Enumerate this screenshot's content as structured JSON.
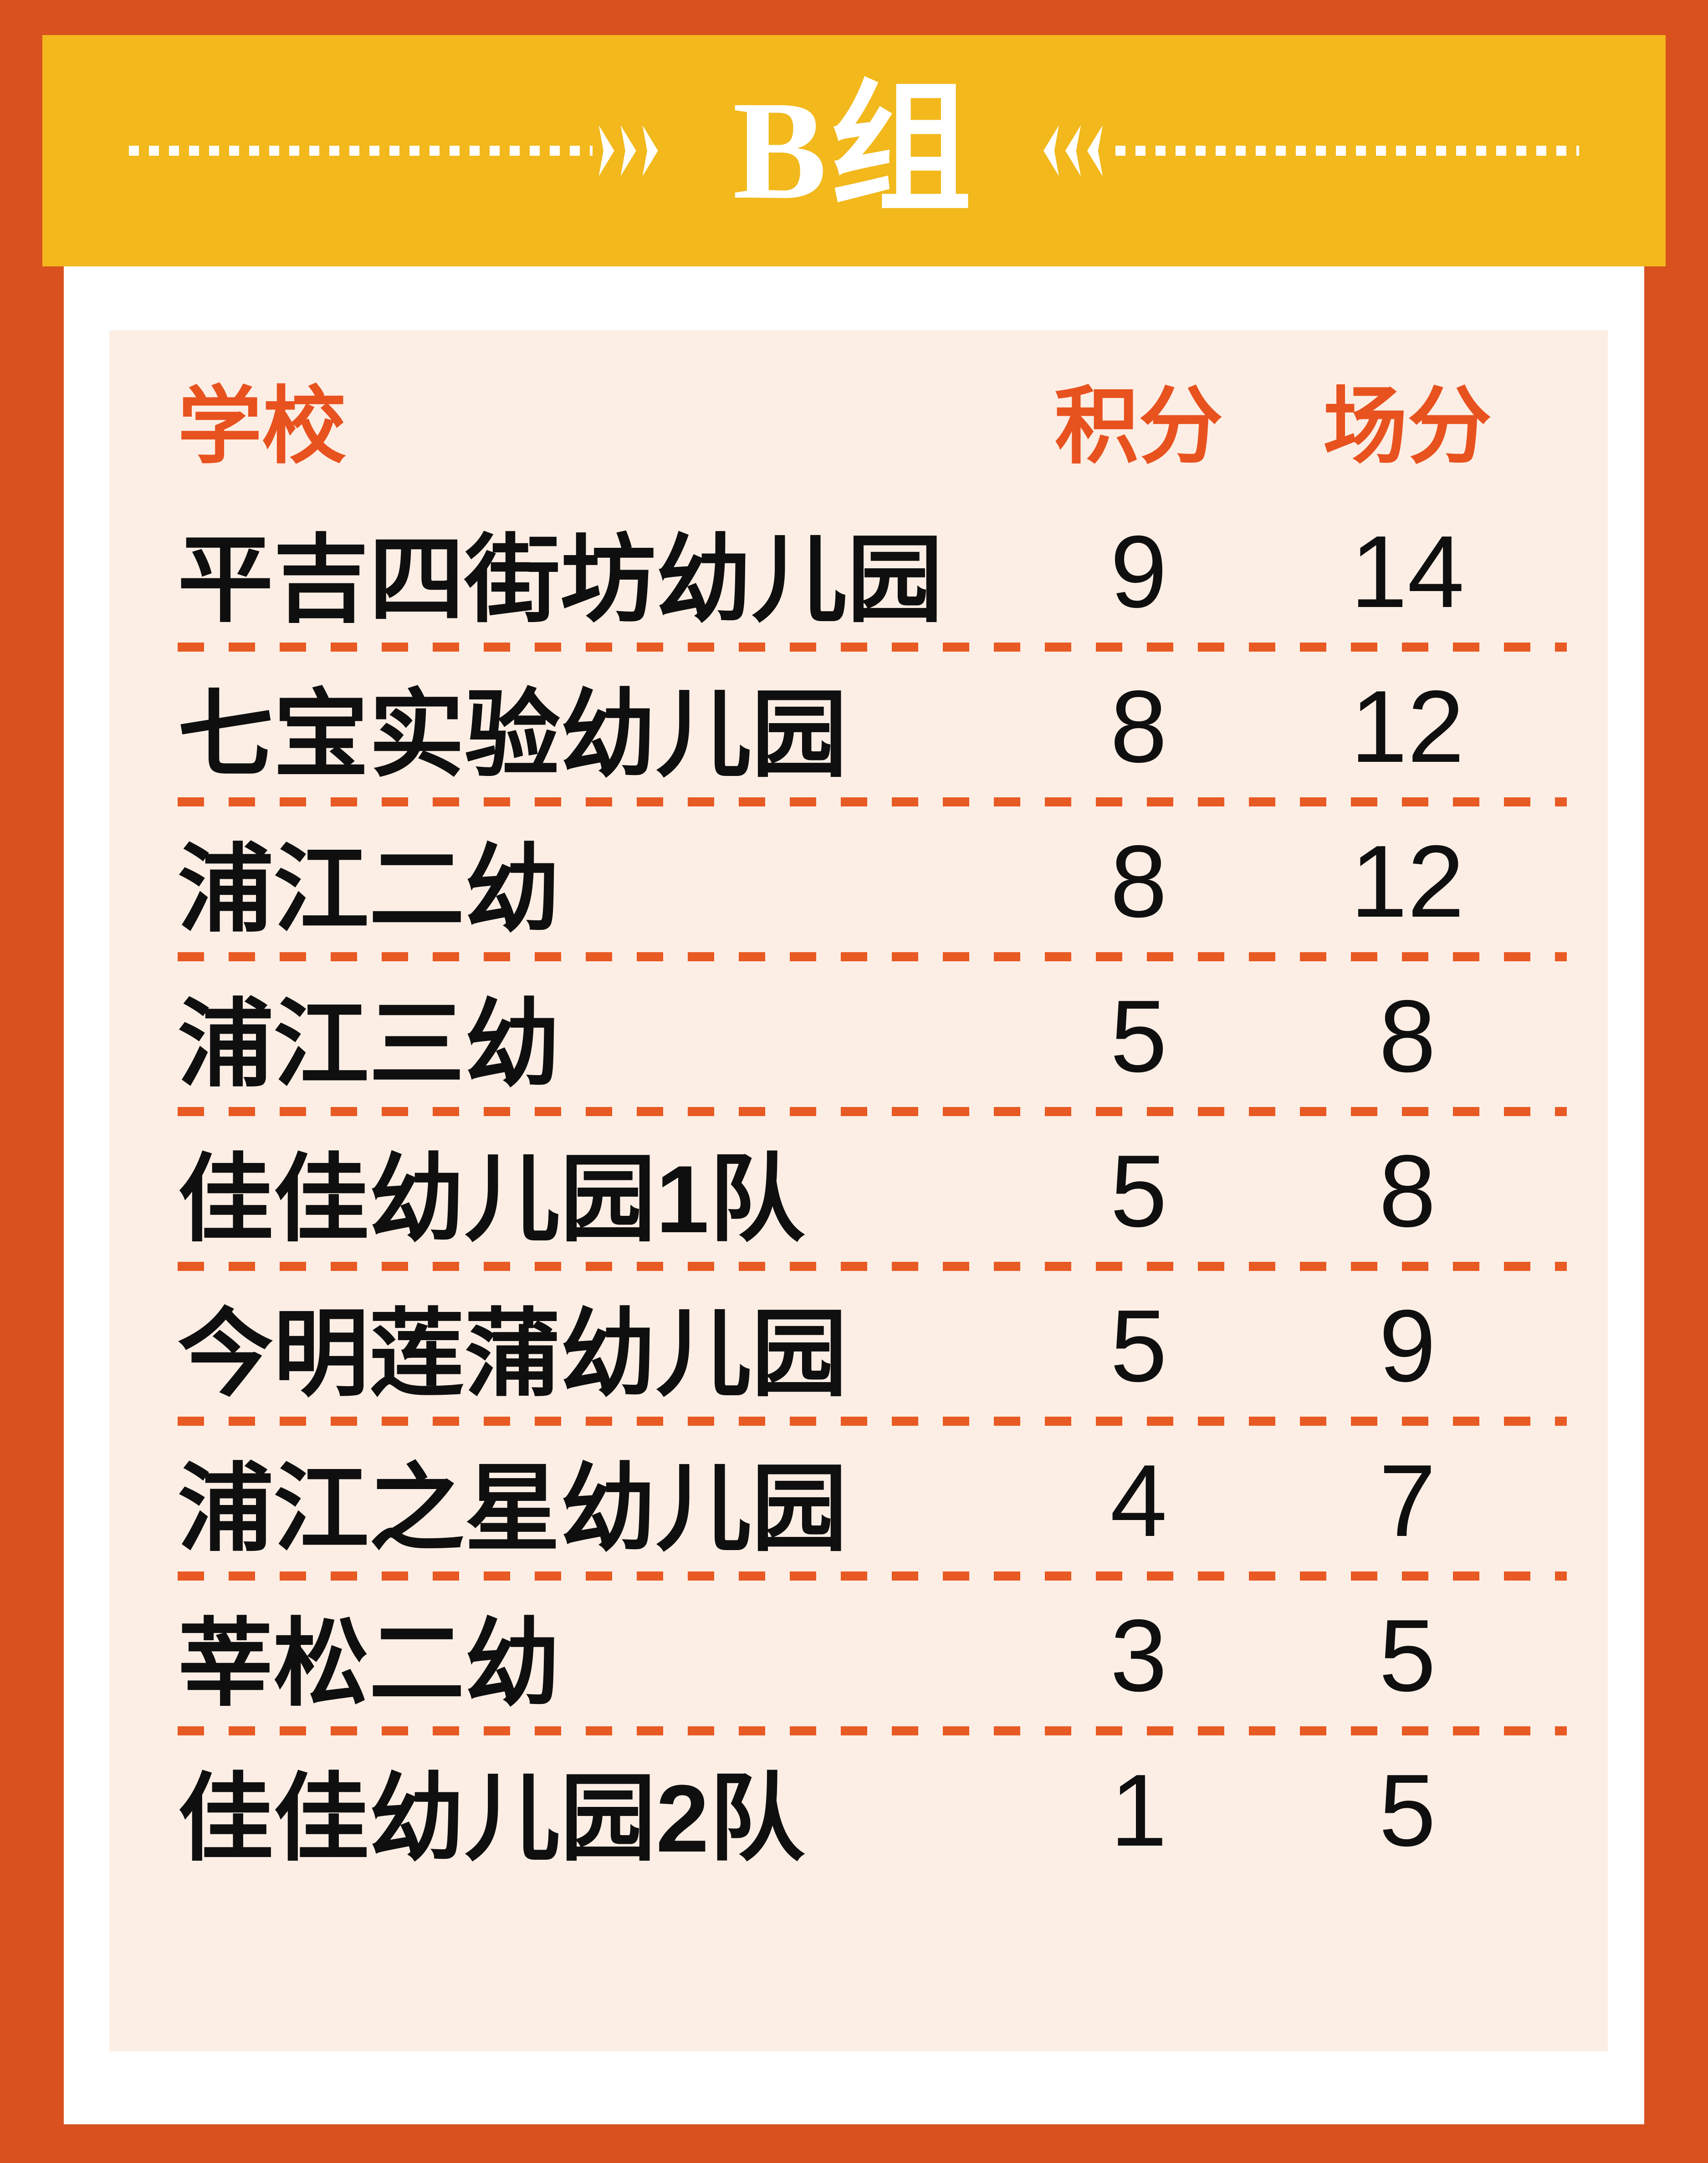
{
  "banner": {
    "title": "B组",
    "bg_color": "#F2B81C",
    "decor": "white-dashed-lines-with-chevrons-pointing-to-title"
  },
  "table": {
    "headers": {
      "school": "学校",
      "points": "积分",
      "match_points": "场分"
    },
    "rows": [
      {
        "school": "平吉四街坊幼儿园",
        "points": "9",
        "match_points": "14"
      },
      {
        "school": "七宝实验幼儿园",
        "points": "8",
        "match_points": "12"
      },
      {
        "school": "浦江二幼",
        "points": "8",
        "match_points": "12"
      },
      {
        "school": "浦江三幼",
        "points": "5",
        "match_points": "8"
      },
      {
        "school": "佳佳幼儿园1队",
        "points": "5",
        "match_points": "8"
      },
      {
        "school": "今明莲蒲幼儿园",
        "points": "5",
        "match_points": "9"
      },
      {
        "school": "浦江之星幼儿园",
        "points": "4",
        "match_points": "7"
      },
      {
        "school": "莘松二幼",
        "points": "3",
        "match_points": "5"
      },
      {
        "school": "佳佳幼儿园2队",
        "points": "1",
        "match_points": "5"
      }
    ]
  },
  "chart_data": {
    "type": "table",
    "title": "B组",
    "columns": [
      "学校",
      "积分",
      "场分"
    ],
    "rows": [
      [
        "平吉四街坊幼儿园",
        9,
        14
      ],
      [
        "七宝实验幼儿园",
        8,
        12
      ],
      [
        "浦江二幼",
        8,
        12
      ],
      [
        "浦江三幼",
        5,
        8
      ],
      [
        "佳佳幼儿园1队",
        5,
        8
      ],
      [
        "今明莲蒲幼儿园",
        5,
        9
      ],
      [
        "浦江之星幼儿园",
        4,
        7
      ],
      [
        "莘松二幼",
        3,
        5
      ],
      [
        "佳佳幼儿园2队",
        1,
        5
      ]
    ]
  },
  "colors": {
    "background_orange": "#D8511F",
    "banner_yellow": "#F2B81C",
    "card_white": "#FFFFFF",
    "panel_cream": "#FCEEE5",
    "header_text_orange": "#E8521F",
    "separator_orange": "#E85A23",
    "body_text_black": "#0F0F0F",
    "banner_text_white": "#FFFFFF"
  }
}
